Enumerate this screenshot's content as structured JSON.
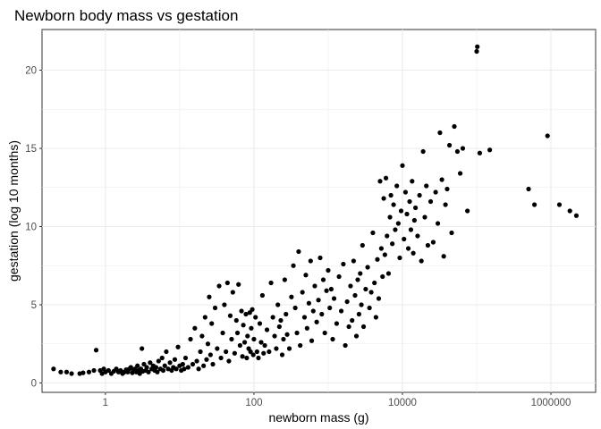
{
  "chart_data": {
    "type": "scatter",
    "title": "Newborn body mass vs gestation",
    "xlabel": "newborn mass (g)",
    "ylabel": "gestation (log 10 months)",
    "x_scale": "log10",
    "xlim": [
      0.14,
      4000000
    ],
    "ylim": [
      -0.6,
      22.6
    ],
    "x_ticks": [
      {
        "value": 1,
        "label": "1"
      },
      {
        "value": 100,
        "label": "100"
      },
      {
        "value": 10000,
        "label": "10000"
      },
      {
        "value": 1000000,
        "label": "1000000"
      }
    ],
    "y_ticks": [
      {
        "value": 0,
        "label": "0"
      },
      {
        "value": 5,
        "label": "5"
      },
      {
        "value": 10,
        "label": "10"
      },
      {
        "value": 15,
        "label": "15"
      },
      {
        "value": 20,
        "label": "20"
      }
    ],
    "grid": true,
    "point_color": "#000000",
    "points": [
      [
        0.2,
        0.9
      ],
      [
        0.25,
        0.7
      ],
      [
        0.3,
        0.7
      ],
      [
        0.35,
        0.6
      ],
      [
        0.45,
        0.6
      ],
      [
        0.5,
        0.65
      ],
      [
        0.6,
        0.7
      ],
      [
        0.7,
        0.8
      ],
      [
        0.75,
        2.1
      ],
      [
        0.85,
        0.8
      ],
      [
        0.9,
        0.6
      ],
      [
        0.95,
        0.9
      ],
      [
        1.0,
        0.7
      ],
      [
        1.1,
        0.8
      ],
      [
        1.2,
        0.6
      ],
      [
        1.3,
        0.75
      ],
      [
        1.4,
        0.9
      ],
      [
        1.5,
        0.7
      ],
      [
        1.6,
        0.8
      ],
      [
        1.7,
        0.6
      ],
      [
        1.8,
        0.7
      ],
      [
        1.9,
        0.85
      ],
      [
        2.0,
        0.7
      ],
      [
        2.1,
        0.9
      ],
      [
        2.2,
        1.0
      ],
      [
        2.3,
        0.65
      ],
      [
        2.4,
        0.8
      ],
      [
        2.5,
        0.9
      ],
      [
        2.6,
        0.7
      ],
      [
        2.7,
        1.1
      ],
      [
        2.8,
        0.8
      ],
      [
        2.9,
        0.6
      ],
      [
        3.0,
        0.9
      ],
      [
        3.1,
        2.2
      ],
      [
        3.2,
        0.75
      ],
      [
        3.3,
        1.2
      ],
      [
        3.5,
        0.8
      ],
      [
        3.6,
        1.0
      ],
      [
        3.8,
        0.7
      ],
      [
        4.0,
        1.3
      ],
      [
        4.2,
        0.9
      ],
      [
        4.4,
        1.1
      ],
      [
        4.6,
        0.8
      ],
      [
        4.8,
        1.0
      ],
      [
        5.0,
        0.7
      ],
      [
        5.2,
        1.4
      ],
      [
        5.5,
        0.9
      ],
      [
        5.8,
        1.6
      ],
      [
        6.0,
        0.8
      ],
      [
        6.3,
        1.1
      ],
      [
        6.6,
        2.0
      ],
      [
        7.0,
        0.9
      ],
      [
        7.4,
        1.3
      ],
      [
        7.8,
        0.8
      ],
      [
        8.2,
        1.0
      ],
      [
        8.6,
        1.5
      ],
      [
        9.0,
        0.9
      ],
      [
        9.5,
        2.3
      ],
      [
        10,
        1.1
      ],
      [
        10.5,
        0.8
      ],
      [
        11,
        1.2
      ],
      [
        11.5,
        0.9
      ],
      [
        12,
        1.6
      ],
      [
        13,
        1.0
      ],
      [
        14,
        2.8
      ],
      [
        15,
        1.2
      ],
      [
        16,
        3.5
      ],
      [
        17,
        1.4
      ],
      [
        18,
        0.9
      ],
      [
        19,
        2.0
      ],
      [
        20,
        3.0
      ],
      [
        21,
        1.1
      ],
      [
        22,
        4.2
      ],
      [
        23,
        1.5
      ],
      [
        24,
        2.5
      ],
      [
        25,
        5.5
      ],
      [
        26,
        1.8
      ],
      [
        27,
        3.8
      ],
      [
        28,
        1.2
      ],
      [
        30,
        4.8
      ],
      [
        32,
        2.2
      ],
      [
        34,
        6.2
      ],
      [
        36,
        1.6
      ],
      [
        38,
        3.2
      ],
      [
        40,
        5.0
      ],
      [
        42,
        2.0
      ],
      [
        44,
        6.4
      ],
      [
        46,
        1.4
      ],
      [
        48,
        4.3
      ],
      [
        50,
        2.8
      ],
      [
        52,
        5.8
      ],
      [
        55,
        1.9
      ],
      [
        58,
        4.0
      ],
      [
        60,
        3.2
      ],
      [
        62,
        6.3
      ],
      [
        65,
        2.4
      ],
      [
        68,
        4.6
      ],
      [
        70,
        1.7
      ],
      [
        72,
        3.7
      ],
      [
        75,
        2.6
      ],
      [
        78,
        4.4
      ],
      [
        80,
        1.6
      ],
      [
        82,
        3.0
      ],
      [
        85,
        2.2
      ],
      [
        88,
        4.5
      ],
      [
        90,
        2.0
      ],
      [
        92,
        3.5
      ],
      [
        95,
        4.7
      ],
      [
        98,
        1.8
      ],
      [
        100,
        2.8
      ],
      [
        105,
        4.2
      ],
      [
        110,
        2.0
      ],
      [
        115,
        1.6
      ],
      [
        120,
        3.8
      ],
      [
        125,
        2.6
      ],
      [
        130,
        5.6
      ],
      [
        135,
        1.9
      ],
      [
        140,
        2.4
      ],
      [
        150,
        3.4
      ],
      [
        160,
        2.0
      ],
      [
        170,
        6.4
      ],
      [
        180,
        4.2
      ],
      [
        190,
        3.0
      ],
      [
        200,
        2.2
      ],
      [
        210,
        5.0
      ],
      [
        220,
        3.6
      ],
      [
        230,
        4.0
      ],
      [
        240,
        1.8
      ],
      [
        250,
        2.8
      ],
      [
        260,
        6.6
      ],
      [
        270,
        4.4
      ],
      [
        280,
        3.1
      ],
      [
        300,
        2.2
      ],
      [
        320,
        5.5
      ],
      [
        340,
        7.5
      ],
      [
        360,
        4.8
      ],
      [
        380,
        3.2
      ],
      [
        400,
        8.4
      ],
      [
        420,
        2.4
      ],
      [
        450,
        5.8
      ],
      [
        480,
        4.2
      ],
      [
        500,
        6.9
      ],
      [
        520,
        3.5
      ],
      [
        550,
        5.1
      ],
      [
        580,
        7.8
      ],
      [
        600,
        2.7
      ],
      [
        630,
        4.6
      ],
      [
        660,
        6.2
      ],
      [
        700,
        3.9
      ],
      [
        740,
        5.3
      ],
      [
        780,
        8.0
      ],
      [
        820,
        4.4
      ],
      [
        860,
        6.6
      ],
      [
        900,
        3.2
      ],
      [
        950,
        5.9
      ],
      [
        1000,
        7.2
      ],
      [
        1050,
        4.8
      ],
      [
        1100,
        6.0
      ],
      [
        1150,
        2.8
      ],
      [
        1200,
        5.4
      ],
      [
        1300,
        3.8
      ],
      [
        1400,
        6.8
      ],
      [
        1500,
        4.6
      ],
      [
        1600,
        7.6
      ],
      [
        1700,
        2.4
      ],
      [
        1800,
        5.2
      ],
      [
        1900,
        3.6
      ],
      [
        2000,
        6.2
      ],
      [
        2100,
        4.0
      ],
      [
        2200,
        7.8
      ],
      [
        2300,
        5.6
      ],
      [
        2400,
        3.0
      ],
      [
        2500,
        6.6
      ],
      [
        2600,
        4.4
      ],
      [
        2700,
        7.0
      ],
      [
        2800,
        5.0
      ],
      [
        2900,
        8.8
      ],
      [
        3000,
        3.6
      ],
      [
        3200,
        6.0
      ],
      [
        3400,
        7.4
      ],
      [
        3600,
        4.8
      ],
      [
        3800,
        5.8
      ],
      [
        4000,
        9.6
      ],
      [
        4200,
        6.4
      ],
      [
        4400,
        4.2
      ],
      [
        4600,
        7.9
      ],
      [
        4800,
        5.4
      ],
      [
        5000,
        12.9
      ],
      [
        5200,
        8.6
      ],
      [
        5400,
        6.8
      ],
      [
        5600,
        11.8
      ],
      [
        5800,
        8.2
      ],
      [
        6000,
        13.1
      ],
      [
        6200,
        9.4
      ],
      [
        6500,
        7.0
      ],
      [
        6800,
        10.6
      ],
      [
        7000,
        12.0
      ],
      [
        7300,
        8.9
      ],
      [
        7600,
        11.4
      ],
      [
        8000,
        9.8
      ],
      [
        8400,
        12.6
      ],
      [
        8800,
        10.2
      ],
      [
        9200,
        8.0
      ],
      [
        9600,
        11.0
      ],
      [
        10000,
        13.9
      ],
      [
        10500,
        9.2
      ],
      [
        11000,
        12.2
      ],
      [
        11500,
        10.8
      ],
      [
        12000,
        8.6
      ],
      [
        12500,
        11.6
      ],
      [
        13000,
        9.8
      ],
      [
        13500,
        12.9
      ],
      [
        14000,
        8.3
      ],
      [
        14500,
        10.4
      ],
      [
        15000,
        11.2
      ],
      [
        16000,
        9.4
      ],
      [
        17000,
        12.0
      ],
      [
        18000,
        7.8
      ],
      [
        19000,
        14.8
      ],
      [
        20000,
        10.6
      ],
      [
        21000,
        12.6
      ],
      [
        22000,
        8.8
      ],
      [
        24000,
        11.6
      ],
      [
        26000,
        9.0
      ],
      [
        28000,
        12.2
      ],
      [
        30000,
        10.2
      ],
      [
        32000,
        16.0
      ],
      [
        34000,
        13.0
      ],
      [
        36000,
        8.1
      ],
      [
        38000,
        11.4
      ],
      [
        40000,
        12.4
      ],
      [
        43000,
        15.2
      ],
      [
        46000,
        9.6
      ],
      [
        50000,
        16.4
      ],
      [
        55000,
        14.8
      ],
      [
        60000,
        13.4
      ],
      [
        65000,
        15.0
      ],
      [
        75000,
        11.0
      ],
      [
        100000,
        21.2
      ],
      [
        102000,
        21.5
      ],
      [
        110000,
        14.7
      ],
      [
        150000,
        14.9
      ],
      [
        500000,
        12.4
      ],
      [
        600000,
        11.4
      ],
      [
        900000,
        15.8
      ],
      [
        1300000,
        11.4
      ],
      [
        1800000,
        11.0
      ],
      [
        2200000,
        10.7
      ]
    ]
  }
}
